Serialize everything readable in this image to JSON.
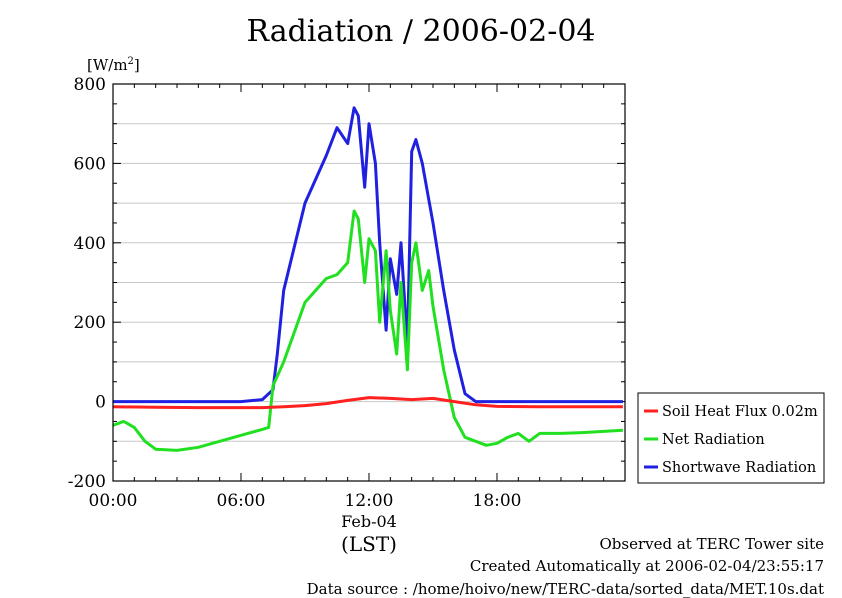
{
  "chart_data": {
    "type": "line",
    "title": "Radiation / 2006-02-04",
    "ylabel_base": "[W/m",
    "ylabel_sup": "2",
    "ylabel_end": "]",
    "ylim": [
      -200,
      800
    ],
    "yticks": [
      -200,
      0,
      200,
      400,
      600,
      800
    ],
    "xlim": [
      0,
      24
    ],
    "xticks": [
      {
        "hour": 0,
        "label": "00:00"
      },
      {
        "hour": 6,
        "label": "06:00"
      },
      {
        "hour": 12,
        "label": "12:00"
      },
      {
        "hour": 18,
        "label": "18:00"
      }
    ],
    "date_label": "Feb-04",
    "x_unit_label": "(LST)",
    "grid": "horizontal",
    "legend_position": "right",
    "series": [
      {
        "name": "Soil Heat Flux 0.02m",
        "color": "#ff2020",
        "x": [
          0,
          2,
          4,
          6,
          7,
          8,
          9,
          10,
          11,
          12,
          13,
          14,
          15,
          16,
          17,
          18,
          20,
          22,
          23.9
        ],
        "y": [
          -13,
          -14,
          -15,
          -15,
          -15,
          -13,
          -10,
          -5,
          3,
          10,
          8,
          5,
          8,
          0,
          -8,
          -12,
          -13,
          -13,
          -13
        ]
      },
      {
        "name": "Net Radiation",
        "color": "#20e020",
        "x": [
          0,
          0.5,
          1,
          1.5,
          2,
          3,
          4,
          5,
          6,
          7,
          7.3,
          7.5,
          8,
          9,
          10,
          10.5,
          11,
          11.3,
          11.5,
          11.8,
          12,
          12.3,
          12.5,
          12.8,
          13,
          13.3,
          13.5,
          13.8,
          14,
          14.2,
          14.5,
          14.8,
          15,
          15.5,
          16,
          16.5,
          17,
          17.5,
          18,
          18.5,
          19,
          19.5,
          20,
          21,
          22,
          23,
          23.9
        ],
        "y": [
          -60,
          -50,
          -65,
          -100,
          -120,
          -123,
          -115,
          -100,
          -85,
          -70,
          -65,
          40,
          100,
          250,
          310,
          320,
          350,
          480,
          460,
          300,
          410,
          380,
          200,
          380,
          230,
          120,
          300,
          80,
          350,
          400,
          280,
          330,
          240,
          80,
          -40,
          -90,
          -100,
          -110,
          -105,
          -90,
          -80,
          -100,
          -80,
          -80,
          -78,
          -75,
          -72
        ]
      },
      {
        "name": "Shortwave Radiation",
        "color": "#2020e0",
        "x": [
          0,
          6,
          7,
          7.5,
          7.7,
          8,
          9,
          10,
          10.5,
          11,
          11.3,
          11.5,
          11.8,
          12,
          12.3,
          12.5,
          12.8,
          13,
          13.3,
          13.5,
          13.8,
          14,
          14.2,
          14.5,
          14.8,
          15,
          15.5,
          16,
          16.5,
          17,
          18,
          20,
          22,
          23.9
        ],
        "y": [
          0,
          0,
          5,
          30,
          120,
          280,
          500,
          620,
          690,
          650,
          740,
          720,
          540,
          700,
          600,
          400,
          180,
          360,
          270,
          400,
          140,
          630,
          660,
          600,
          510,
          450,
          280,
          130,
          20,
          0,
          0,
          0,
          0,
          0
        ]
      }
    ]
  },
  "footer": {
    "site": "Observed at TERC Tower site",
    "created": "Created Automatically at 2006-02-04/23:55:17",
    "source": "Data source : /home/hoivo/new/TERC-data/sorted_data/MET.10s.dat"
  }
}
